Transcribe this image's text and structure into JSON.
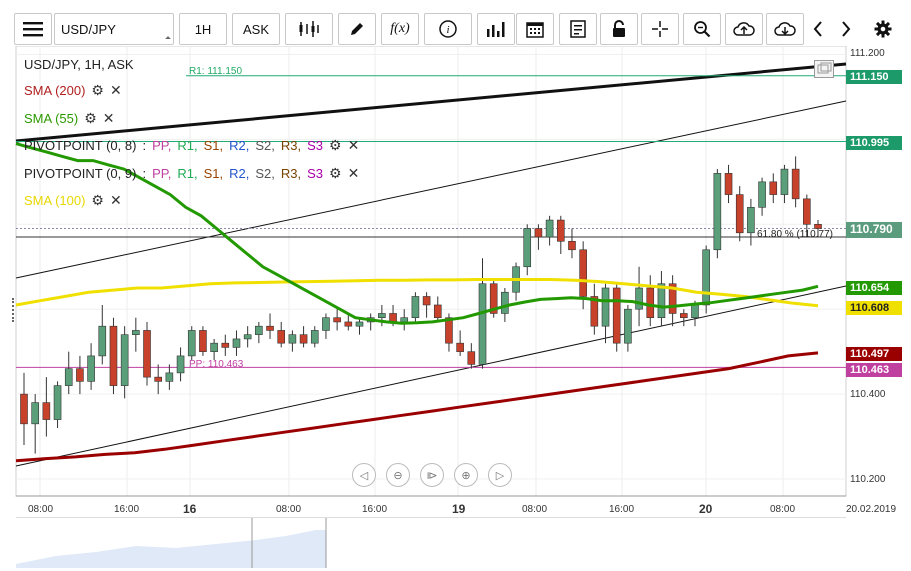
{
  "toolbar": {
    "symbol": "USD/JPY",
    "timeframe": "1H",
    "price_type": "ASK"
  },
  "legend": {
    "title": "USD/JPY, 1H, ASK",
    "sma200": "SMA (200)",
    "sma55": "SMA (55)",
    "pivot1_name": "PIVOTPOINT (0, 8)",
    "pivot2_name": "PIVOTPOINT (0, 9)",
    "pivot_sep": ":",
    "pp": "PP,",
    "r1": "R1,",
    "s1": "S1,",
    "r2": "R2,",
    "s2": "S2,",
    "r3": "R3,",
    "s3": "S3",
    "sma100": "SMA (100)"
  },
  "annotations": {
    "r1_line": "R1: 111.150",
    "pp_line": "PP: 110.463",
    "fib": "61.80 % (110.77)"
  },
  "price_axis": [
    "111.200",
    "110.400",
    "110.200"
  ],
  "price_tags": {
    "r1": "111.150",
    "r1_line2": "110.995",
    "current": "110.790",
    "sma55": "110.654",
    "sma100": "110.608",
    "sma200": "110.497",
    "pp": "110.463"
  },
  "time_axis": [
    "08:00",
    "16:00",
    "16",
    "08:00",
    "16:00",
    "19",
    "08:00",
    "16:00",
    "20",
    "08:00",
    "20.02.2019"
  ],
  "colors": {
    "up": "#5a9e7a",
    "down": "#c8412b",
    "sma200": "#9b0000",
    "sma55": "#229900",
    "sma100": "#f0e000",
    "r1": "#22aa77",
    "pp": "#c040a0"
  },
  "chart_data": {
    "type": "candlestick",
    "title": "USD/JPY, 1H, ASK",
    "ylim": [
      110.16,
      111.22
    ],
    "candles": [
      {
        "o": 110.4,
        "h": 110.45,
        "l": 110.28,
        "c": 110.33
      },
      {
        "o": 110.33,
        "h": 110.4,
        "l": 110.26,
        "c": 110.38
      },
      {
        "o": 110.38,
        "h": 110.44,
        "l": 110.3,
        "c": 110.34
      },
      {
        "o": 110.34,
        "h": 110.43,
        "l": 110.32,
        "c": 110.42
      },
      {
        "o": 110.42,
        "h": 110.5,
        "l": 110.4,
        "c": 110.46
      },
      {
        "o": 110.46,
        "h": 110.49,
        "l": 110.4,
        "c": 110.43
      },
      {
        "o": 110.43,
        "h": 110.52,
        "l": 110.41,
        "c": 110.49
      },
      {
        "o": 110.49,
        "h": 110.61,
        "l": 110.47,
        "c": 110.56
      },
      {
        "o": 110.56,
        "h": 110.58,
        "l": 110.4,
        "c": 110.42
      },
      {
        "o": 110.42,
        "h": 110.56,
        "l": 110.39,
        "c": 110.54
      },
      {
        "o": 110.54,
        "h": 110.58,
        "l": 110.5,
        "c": 110.55
      },
      {
        "o": 110.55,
        "h": 110.57,
        "l": 110.42,
        "c": 110.44
      },
      {
        "o": 110.44,
        "h": 110.47,
        "l": 110.4,
        "c": 110.43
      },
      {
        "o": 110.43,
        "h": 110.47,
        "l": 110.41,
        "c": 110.45
      },
      {
        "o": 110.45,
        "h": 110.51,
        "l": 110.43,
        "c": 110.49
      },
      {
        "o": 110.49,
        "h": 110.56,
        "l": 110.48,
        "c": 110.55
      },
      {
        "o": 110.55,
        "h": 110.56,
        "l": 110.49,
        "c": 110.5
      },
      {
        "o": 110.5,
        "h": 110.53,
        "l": 110.48,
        "c": 110.52
      },
      {
        "o": 110.52,
        "h": 110.54,
        "l": 110.49,
        "c": 110.51
      },
      {
        "o": 110.51,
        "h": 110.55,
        "l": 110.49,
        "c": 110.53
      },
      {
        "o": 110.53,
        "h": 110.56,
        "l": 110.51,
        "c": 110.54
      },
      {
        "o": 110.54,
        "h": 110.57,
        "l": 110.52,
        "c": 110.56
      },
      {
        "o": 110.56,
        "h": 110.59,
        "l": 110.53,
        "c": 110.55
      },
      {
        "o": 110.55,
        "h": 110.57,
        "l": 110.51,
        "c": 110.52
      },
      {
        "o": 110.52,
        "h": 110.55,
        "l": 110.5,
        "c": 110.54
      },
      {
        "o": 110.54,
        "h": 110.56,
        "l": 110.51,
        "c": 110.52
      },
      {
        "o": 110.52,
        "h": 110.56,
        "l": 110.51,
        "c": 110.55
      },
      {
        "o": 110.55,
        "h": 110.59,
        "l": 110.53,
        "c": 110.58
      },
      {
        "o": 110.58,
        "h": 110.6,
        "l": 110.55,
        "c": 110.57
      },
      {
        "o": 110.57,
        "h": 110.59,
        "l": 110.55,
        "c": 110.56
      },
      {
        "o": 110.56,
        "h": 110.58,
        "l": 110.54,
        "c": 110.57
      },
      {
        "o": 110.57,
        "h": 110.59,
        "l": 110.55,
        "c": 110.58
      },
      {
        "o": 110.58,
        "h": 110.61,
        "l": 110.56,
        "c": 110.59
      },
      {
        "o": 110.59,
        "h": 110.61,
        "l": 110.56,
        "c": 110.57
      },
      {
        "o": 110.57,
        "h": 110.6,
        "l": 110.55,
        "c": 110.58
      },
      {
        "o": 110.58,
        "h": 110.64,
        "l": 110.57,
        "c": 110.63
      },
      {
        "o": 110.63,
        "h": 110.64,
        "l": 110.58,
        "c": 110.61
      },
      {
        "o": 110.61,
        "h": 110.63,
        "l": 110.57,
        "c": 110.58
      },
      {
        "o": 110.58,
        "h": 110.59,
        "l": 110.5,
        "c": 110.52
      },
      {
        "o": 110.52,
        "h": 110.55,
        "l": 110.49,
        "c": 110.5
      },
      {
        "o": 110.5,
        "h": 110.52,
        "l": 110.46,
        "c": 110.47
      },
      {
        "o": 110.47,
        "h": 110.72,
        "l": 110.46,
        "c": 110.66
      },
      {
        "o": 110.66,
        "h": 110.67,
        "l": 110.58,
        "c": 110.59
      },
      {
        "o": 110.59,
        "h": 110.65,
        "l": 110.57,
        "c": 110.64
      },
      {
        "o": 110.64,
        "h": 110.71,
        "l": 110.62,
        "c": 110.7
      },
      {
        "o": 110.7,
        "h": 110.8,
        "l": 110.68,
        "c": 110.79
      },
      {
        "o": 110.79,
        "h": 110.8,
        "l": 110.74,
        "c": 110.77
      },
      {
        "o": 110.77,
        "h": 110.82,
        "l": 110.75,
        "c": 110.81
      },
      {
        "o": 110.81,
        "h": 110.82,
        "l": 110.73,
        "c": 110.76
      },
      {
        "o": 110.76,
        "h": 110.79,
        "l": 110.72,
        "c": 110.74
      },
      {
        "o": 110.74,
        "h": 110.76,
        "l": 110.6,
        "c": 110.63
      },
      {
        "o": 110.63,
        "h": 110.66,
        "l": 110.54,
        "c": 110.56
      },
      {
        "o": 110.56,
        "h": 110.66,
        "l": 110.52,
        "c": 110.65
      },
      {
        "o": 110.65,
        "h": 110.66,
        "l": 110.5,
        "c": 110.52
      },
      {
        "o": 110.52,
        "h": 110.61,
        "l": 110.5,
        "c": 110.6
      },
      {
        "o": 110.6,
        "h": 110.7,
        "l": 110.56,
        "c": 110.65
      },
      {
        "o": 110.65,
        "h": 110.68,
        "l": 110.56,
        "c": 110.58
      },
      {
        "o": 110.58,
        "h": 110.69,
        "l": 110.56,
        "c": 110.66
      },
      {
        "o": 110.66,
        "h": 110.68,
        "l": 110.56,
        "c": 110.59
      },
      {
        "o": 110.59,
        "h": 110.6,
        "l": 110.56,
        "c": 110.58
      },
      {
        "o": 110.58,
        "h": 110.62,
        "l": 110.56,
        "c": 110.61
      },
      {
        "o": 110.61,
        "h": 110.75,
        "l": 110.59,
        "c": 110.74
      },
      {
        "o": 110.74,
        "h": 110.93,
        "l": 110.72,
        "c": 110.92
      },
      {
        "o": 110.92,
        "h": 110.94,
        "l": 110.85,
        "c": 110.87
      },
      {
        "o": 110.87,
        "h": 110.89,
        "l": 110.76,
        "c": 110.78
      },
      {
        "o": 110.78,
        "h": 110.86,
        "l": 110.75,
        "c": 110.84
      },
      {
        "o": 110.84,
        "h": 110.91,
        "l": 110.82,
        "c": 110.9
      },
      {
        "o": 110.9,
        "h": 110.92,
        "l": 110.85,
        "c": 110.87
      },
      {
        "o": 110.87,
        "h": 110.94,
        "l": 110.85,
        "c": 110.93
      },
      {
        "o": 110.93,
        "h": 110.96,
        "l": 110.84,
        "c": 110.86
      },
      {
        "o": 110.86,
        "h": 110.87,
        "l": 110.77,
        "c": 110.8
      },
      {
        "o": 110.8,
        "h": 110.81,
        "l": 110.77,
        "c": 110.79
      }
    ],
    "sma55": [
      110.99,
      110.98,
      110.97,
      110.96,
      110.95,
      110.95,
      110.94,
      110.93,
      110.91,
      110.89,
      110.87,
      110.84,
      110.82,
      110.79,
      110.76,
      110.73,
      110.7,
      110.68,
      110.66,
      110.64,
      110.62,
      110.6,
      110.58,
      110.575,
      110.57,
      110.567,
      110.568,
      110.57,
      110.575,
      110.58,
      110.59,
      110.6,
      110.61,
      110.617,
      110.623,
      110.625,
      110.627,
      110.625,
      110.62,
      110.62,
      110.618,
      110.61,
      110.605,
      110.608,
      110.612,
      110.615,
      110.62,
      110.625,
      110.63,
      110.635,
      110.64,
      110.645,
      110.654
    ],
    "sma100": [
      110.61,
      110.62,
      110.63,
      110.64,
      110.645,
      110.65,
      110.65,
      110.655,
      110.66,
      110.662,
      110.663,
      110.664,
      110.665,
      110.666,
      110.667,
      110.668,
      110.668,
      110.669,
      110.669,
      110.67,
      110.67,
      110.67,
      110.67,
      110.668,
      110.665,
      110.66,
      110.655,
      110.65,
      110.64,
      110.635,
      110.63,
      110.622,
      110.614,
      110.608
    ],
    "sma200": [
      110.243,
      110.248,
      110.252,
      110.258,
      110.262,
      110.27,
      110.28,
      110.29,
      110.3,
      110.31,
      110.32,
      110.33,
      110.34,
      110.35,
      110.36,
      110.37,
      110.38,
      110.39,
      110.4,
      110.41,
      110.42,
      110.43,
      110.44,
      110.45,
      110.46,
      110.475,
      110.49,
      110.497
    ],
    "levels": {
      "r1": 111.15,
      "r1_b": 110.995,
      "pp": 110.463,
      "current": 110.79,
      "fib": 110.77
    }
  }
}
